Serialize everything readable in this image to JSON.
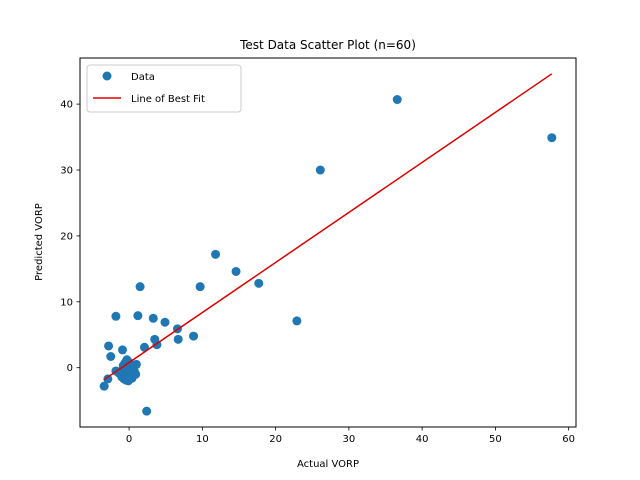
{
  "chart_data": {
    "type": "scatter",
    "title": "Test Data Scatter Plot (n=60)",
    "xlabel": "Actual VORP",
    "ylabel": "Predicted VORP",
    "xlim": [
      -6.7,
      61.0
    ],
    "ylim": [
      -9.0,
      47.0
    ],
    "xticks": [
      0,
      10,
      20,
      30,
      40,
      50,
      60
    ],
    "yticks": [
      0,
      10,
      20,
      30,
      40
    ],
    "grid": false,
    "legend_position": "top-left",
    "colors": {
      "data": "#1f77b4",
      "fit": "#e00000",
      "axes": "#000000",
      "background": "#ffffff"
    },
    "series": [
      {
        "name": "Data",
        "kind": "scatter",
        "points": [
          [
            -3.4,
            -2.8
          ],
          [
            -2.9,
            -1.7
          ],
          [
            -2.8,
            3.3
          ],
          [
            -2.5,
            1.7
          ],
          [
            -1.8,
            7.8
          ],
          [
            -1.8,
            -0.5
          ],
          [
            -1.4,
            -0.8
          ],
          [
            -1.0,
            -1.4
          ],
          [
            -0.9,
            2.7
          ],
          [
            -0.8,
            0.3
          ],
          [
            -0.7,
            -0.3
          ],
          [
            -0.6,
            -1.0
          ],
          [
            -0.5,
            0.8
          ],
          [
            -0.4,
            -1.9
          ],
          [
            -0.3,
            1.2
          ],
          [
            -0.3,
            -0.6
          ],
          [
            -0.2,
            0.1
          ],
          [
            -0.1,
            -2.0
          ],
          [
            0.0,
            0.4
          ],
          [
            0.1,
            -1.5
          ],
          [
            0.2,
            0.0
          ],
          [
            0.3,
            -0.9
          ],
          [
            0.5,
            -0.2
          ],
          [
            0.6,
            -1.1
          ],
          [
            0.8,
            -0.8
          ],
          [
            1.0,
            0.5
          ],
          [
            1.2,
            7.9
          ],
          [
            1.5,
            12.3
          ],
          [
            2.1,
            3.1
          ],
          [
            2.4,
            -6.6
          ],
          [
            3.3,
            7.5
          ],
          [
            3.5,
            4.3
          ],
          [
            3.8,
            3.5
          ],
          [
            4.9,
            6.9
          ],
          [
            6.6,
            5.9
          ],
          [
            6.7,
            4.3
          ],
          [
            8.8,
            4.8
          ],
          [
            9.7,
            12.3
          ],
          [
            11.8,
            17.2
          ],
          [
            14.6,
            14.6
          ],
          [
            17.7,
            12.8
          ],
          [
            22.9,
            7.1
          ],
          [
            26.1,
            30.0
          ],
          [
            36.6,
            40.7
          ],
          [
            57.7,
            34.9
          ],
          [
            -0.6,
            0.6
          ],
          [
            -0.2,
            -1.3
          ],
          [
            0.1,
            0.7
          ],
          [
            -0.9,
            -0.4
          ],
          [
            0.4,
            -1.6
          ],
          [
            -0.5,
            -0.1
          ],
          [
            0.7,
            -0.5
          ],
          [
            -1.2,
            -0.7
          ],
          [
            0.2,
            -0.3
          ],
          [
            -0.1,
            0.9
          ],
          [
            0.9,
            -1.0
          ],
          [
            -0.7,
            -1.7
          ],
          [
            0.3,
            0.2
          ],
          [
            -0.4,
            -1.2
          ],
          [
            0.0,
            -0.6
          ]
        ]
      },
      {
        "name": "Line of Best Fit",
        "kind": "line",
        "x": [
          -3.4,
          57.7
        ],
        "y": [
          -1.8,
          44.6
        ]
      }
    ]
  }
}
